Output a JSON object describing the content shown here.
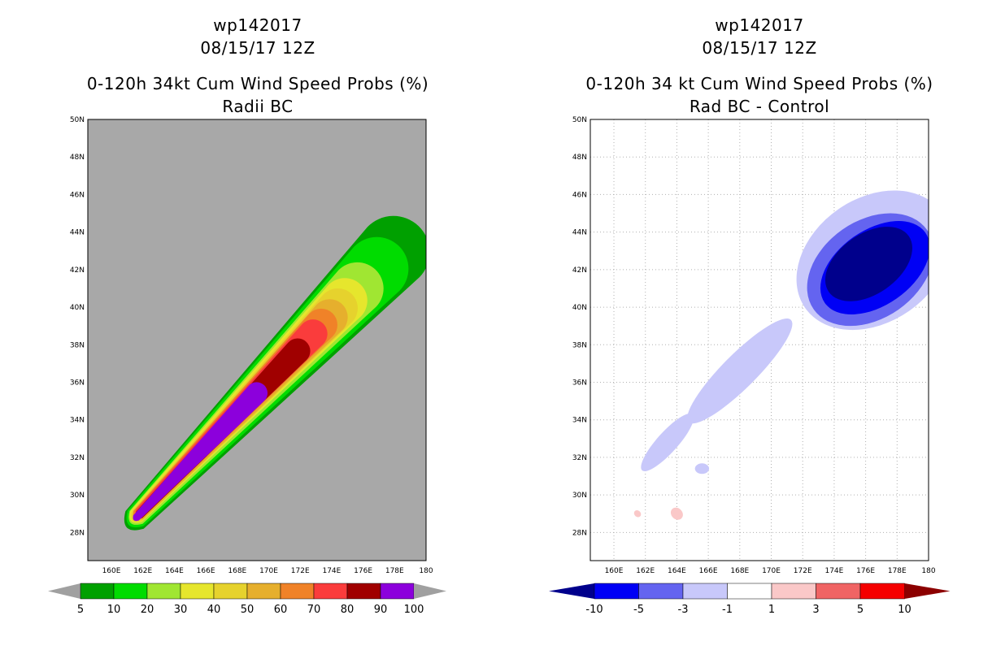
{
  "chart_data": [
    {
      "type": "heatmap",
      "storm_id": "wp142017",
      "date": "08/15/17 12Z",
      "title": "0-120h 34kt Cum Wind Speed Probs (%)",
      "subtitle": "Radii BC",
      "background_color": "#a8a8a8",
      "x_ticks": [
        "160E",
        "162E",
        "164E",
        "166E",
        "168E",
        "170E",
        "172E",
        "174E",
        "176E",
        "178E",
        "180"
      ],
      "y_ticks": [
        "28N",
        "30N",
        "32N",
        "34N",
        "36N",
        "38N",
        "40N",
        "42N",
        "44N",
        "46N",
        "48N",
        "50N"
      ],
      "xlim": [
        158.5,
        180
      ],
      "ylim": [
        26.5,
        50
      ],
      "grid": false,
      "colorbar": {
        "labels": [
          "5",
          "10",
          "20",
          "30",
          "40",
          "50",
          "60",
          "70",
          "80",
          "90",
          "100"
        ],
        "colors": [
          "#00a000",
          "#00dc00",
          "#a0e632",
          "#e6e62d",
          "#e6d22d",
          "#e6af2d",
          "#f08228",
          "#fa3c3c",
          "#a00000",
          "#8c00dc"
        ]
      },
      "levels": [
        {
          "threshold": "5",
          "color": "#00a000",
          "center": [
            169.7,
            35.8
          ],
          "half_length": 10.3,
          "half_width": 2.0
        },
        {
          "threshold": "10",
          "color": "#00dc00",
          "center": [
            169.2,
            35.4
          ],
          "half_length": 9.6,
          "half_width": 1.75
        },
        {
          "threshold": "20",
          "color": "#a0e632",
          "center": [
            168.6,
            34.9
          ],
          "half_length": 8.8,
          "half_width": 1.45
        },
        {
          "threshold": "30",
          "color": "#e6e62d",
          "center": [
            168.2,
            34.6
          ],
          "half_length": 8.3,
          "half_width": 1.25
        },
        {
          "threshold": "40",
          "color": "#e6d22d",
          "center": [
            168.0,
            34.4
          ],
          "half_length": 8.0,
          "half_width": 1.1
        },
        {
          "threshold": "50",
          "color": "#e6af2d",
          "center": [
            167.8,
            34.2
          ],
          "half_length": 7.6,
          "half_width": 1.0
        },
        {
          "threshold": "60",
          "color": "#f08228",
          "center": [
            167.5,
            34.0
          ],
          "half_length": 7.3,
          "half_width": 0.9
        },
        {
          "threshold": "70",
          "color": "#fa3c3c",
          "center": [
            167.3,
            33.8
          ],
          "half_length": 6.9,
          "half_width": 0.8
        },
        {
          "threshold": "80",
          "color": "#a00000",
          "center": [
            166.8,
            33.3
          ],
          "half_length": 6.3,
          "half_width": 0.7
        },
        {
          "threshold": "90",
          "color": "#8c00dc",
          "center": [
            165.4,
            32.1
          ],
          "half_length": 4.8,
          "half_width": 0.6
        }
      ]
    },
    {
      "type": "heatmap",
      "storm_id": "wp142017",
      "date": "08/15/17 12Z",
      "title": "0-120h 34 kt Cum Wind Speed Probs (%)",
      "subtitle": "Rad BC - Control",
      "background_color": "#ffffff",
      "x_ticks": [
        "160E",
        "162E",
        "164E",
        "166E",
        "168E",
        "170E",
        "172E",
        "174E",
        "176E",
        "178E",
        "180"
      ],
      "y_ticks": [
        "28N",
        "30N",
        "32N",
        "34N",
        "36N",
        "38N",
        "40N",
        "42N",
        "44N",
        "46N",
        "48N",
        "50N"
      ],
      "xlim": [
        158.5,
        180
      ],
      "ylim": [
        26.5,
        50
      ],
      "grid": true,
      "colorbar": {
        "labels": [
          "-10",
          "-5",
          "-3",
          "-1",
          "1",
          "3",
          "5",
          "10"
        ],
        "colors": [
          "#00008c",
          "#0000f5",
          "#6464f0",
          "#c8c8fa",
          "#ffffff",
          "#fac8c8",
          "#f06464",
          "#f50000",
          "#8c0000"
        ]
      },
      "blobs": [
        {
          "threshold": "-1",
          "color": "#c8c8fa",
          "center": [
            176.5,
            42.5
          ],
          "rx": 5.3,
          "ry": 3.3,
          "rotation": 35
        },
        {
          "threshold": "-1",
          "color": "#c8c8fa",
          "center": [
            168.0,
            36.6
          ],
          "rx": 4.6,
          "ry": 0.9,
          "rotation": 45
        },
        {
          "threshold": "-1",
          "color": "#c8c8fa",
          "center": [
            163.4,
            32.8
          ],
          "rx": 2.4,
          "ry": 0.55,
          "rotation": 48
        },
        {
          "threshold": "-1",
          "color": "#c8c8fa",
          "center": [
            165.6,
            31.4
          ],
          "rx": 0.45,
          "ry": 0.28,
          "rotation": 0
        },
        {
          "threshold": "-3",
          "color": "#6464f0",
          "center": [
            176.3,
            42.0
          ],
          "rx": 4.4,
          "ry": 2.6,
          "rotation": 35
        },
        {
          "threshold": "-5",
          "color": "#0000f5",
          "center": [
            176.6,
            42.1
          ],
          "rx": 3.9,
          "ry": 2.0,
          "rotation": 35
        },
        {
          "threshold": "-10",
          "color": "#00008c",
          "center": [
            176.2,
            42.3
          ],
          "rx": 3.1,
          "ry": 1.6,
          "rotation": 35
        },
        {
          "threshold": "1",
          "color": "#fac8c8",
          "center": [
            164.0,
            29.0
          ],
          "rx": 0.35,
          "ry": 0.35,
          "rotation": 45
        },
        {
          "threshold": "1",
          "color": "#fac8c8",
          "center": [
            161.5,
            29.0
          ],
          "rx": 0.2,
          "ry": 0.2,
          "rotation": 45
        }
      ]
    }
  ]
}
